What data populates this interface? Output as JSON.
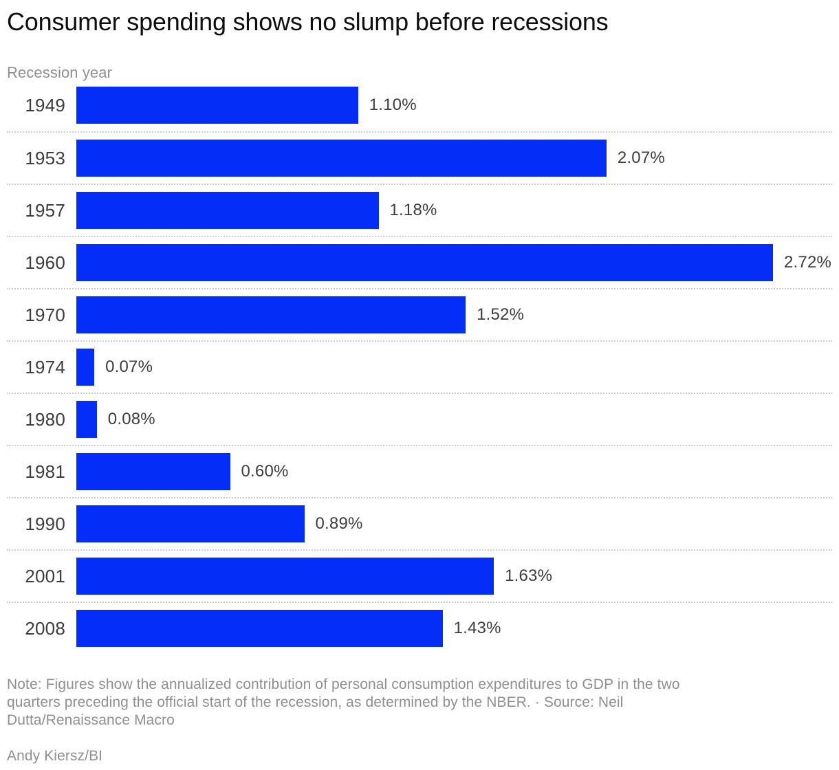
{
  "title": "Consumer spending shows no slump before recessions",
  "chart_data": {
    "type": "bar",
    "orientation": "horizontal",
    "title": "Consumer spending shows no slump before recessions",
    "axis_label": "Recession year",
    "categories": [
      "1949",
      "1953",
      "1957",
      "1960",
      "1970",
      "1974",
      "1980",
      "1981",
      "1990",
      "2001",
      "2008"
    ],
    "values": [
      1.1,
      2.07,
      1.18,
      2.72,
      1.52,
      0.07,
      0.08,
      0.6,
      0.89,
      1.63,
      1.43
    ],
    "value_labels": [
      "1.10%",
      "2.07%",
      "1.18%",
      "2.72%",
      "1.52%",
      "0.07%",
      "0.08%",
      "0.60%",
      "0.89%",
      "1.63%",
      "1.43%"
    ],
    "xlim": [
      0,
      2.72
    ],
    "bar_color": "#052df8",
    "grid": "dotted-row-separators",
    "legend": "none"
  },
  "note_lines": [
    "Note: Figures show the annualized contribution of personal consumption expenditures to GDP in the two",
    "quarters preceding the official start of the recession, as determined by the NBER. · Source: Neil",
    "Dutta/Renaissance Macro"
  ],
  "credit": "Andy Kiersz/BI",
  "colors": {
    "bar": "#052df8",
    "title_text": "#0e0e0e",
    "label_text": "#3d3d3d",
    "muted_text": "#8f8f93",
    "separator": "#cccccc",
    "background": "#ffffff"
  }
}
